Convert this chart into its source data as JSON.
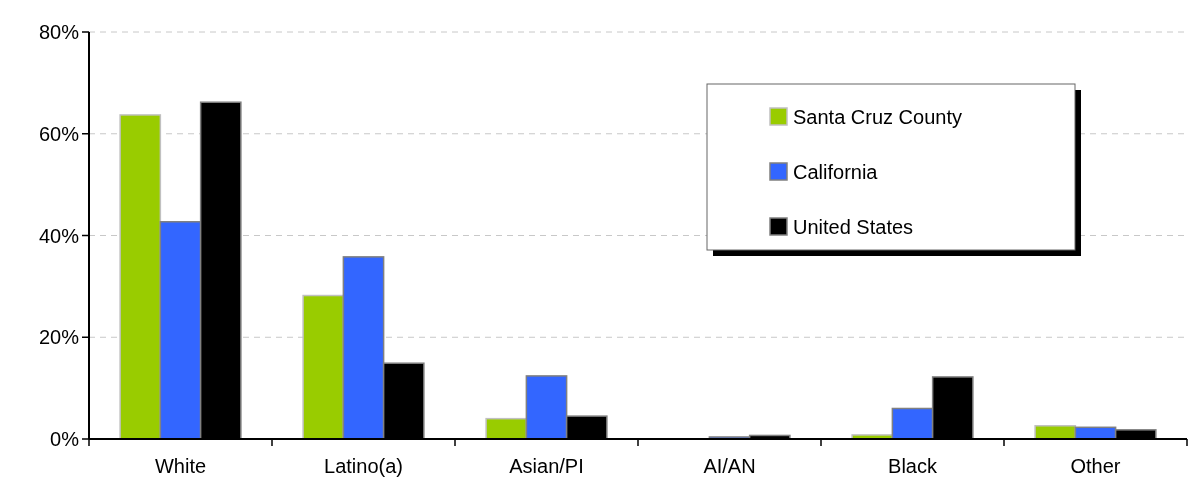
{
  "chart_data": {
    "type": "bar",
    "categories": [
      "White",
      "Latino(a)",
      "Asian/PI",
      "AI/AN",
      "Black",
      "Other"
    ],
    "series": [
      {
        "name": "Santa Cruz County",
        "color": "#99cc00",
        "values": [
          63.7,
          28.2,
          4.0,
          null,
          0.8,
          2.6
        ]
      },
      {
        "name": "California",
        "color": "#3366ff",
        "values": [
          42.7,
          35.8,
          12.4,
          0.4,
          6.0,
          2.3
        ]
      },
      {
        "name": "United States",
        "color": "#000000",
        "values": [
          66.2,
          14.9,
          4.5,
          0.7,
          12.2,
          1.8
        ]
      }
    ],
    "ylim": [
      0,
      80
    ],
    "yticks": [
      {
        "value": 0,
        "label": "0%"
      },
      {
        "value": 20,
        "label": "20%"
      },
      {
        "value": 40,
        "label": "40%"
      },
      {
        "value": 60,
        "label": "60%"
      },
      {
        "value": 80,
        "label": "80%"
      }
    ],
    "grid": "y",
    "legend": "top right"
  }
}
